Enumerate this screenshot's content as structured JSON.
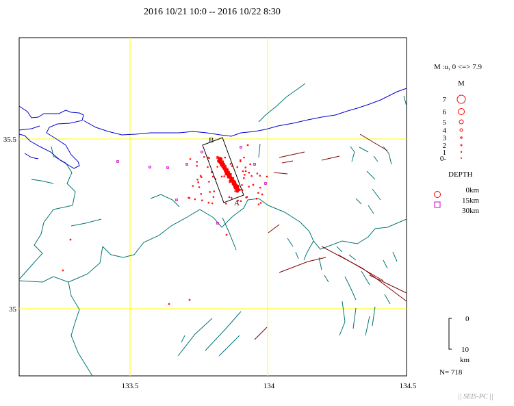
{
  "header": {
    "title": "2016 10/21 10:0 -- 2016 10/22 8:30"
  },
  "map": {
    "lon_labels": [
      "133.5",
      "134",
      "134.5"
    ],
    "lat_labels": [
      "35.5",
      "35"
    ],
    "section": {
      "start_label": "B",
      "end_label": "A"
    }
  },
  "legend": {
    "mag_range": "M :u, 0 <=> 7.9",
    "mag_title": "M",
    "mag_labels": [
      "7",
      "6",
      "5",
      "4",
      "3",
      "2",
      "1",
      "0-"
    ],
    "depth_title": "DEPTH",
    "depth_labels": [
      "0km",
      "15km",
      "30km"
    ],
    "scale_top": "0",
    "scale_bottom": "10",
    "scale_unit": "km",
    "count": "N= 718",
    "watermark": "|| SEIS-PC ||"
  },
  "colors": {
    "coast": "#0000cc",
    "prefecture": "#007373",
    "fault": "#800000",
    "grid": "#ffff00",
    "quake": "#ff0000",
    "deep": "#cc00cc"
  }
}
